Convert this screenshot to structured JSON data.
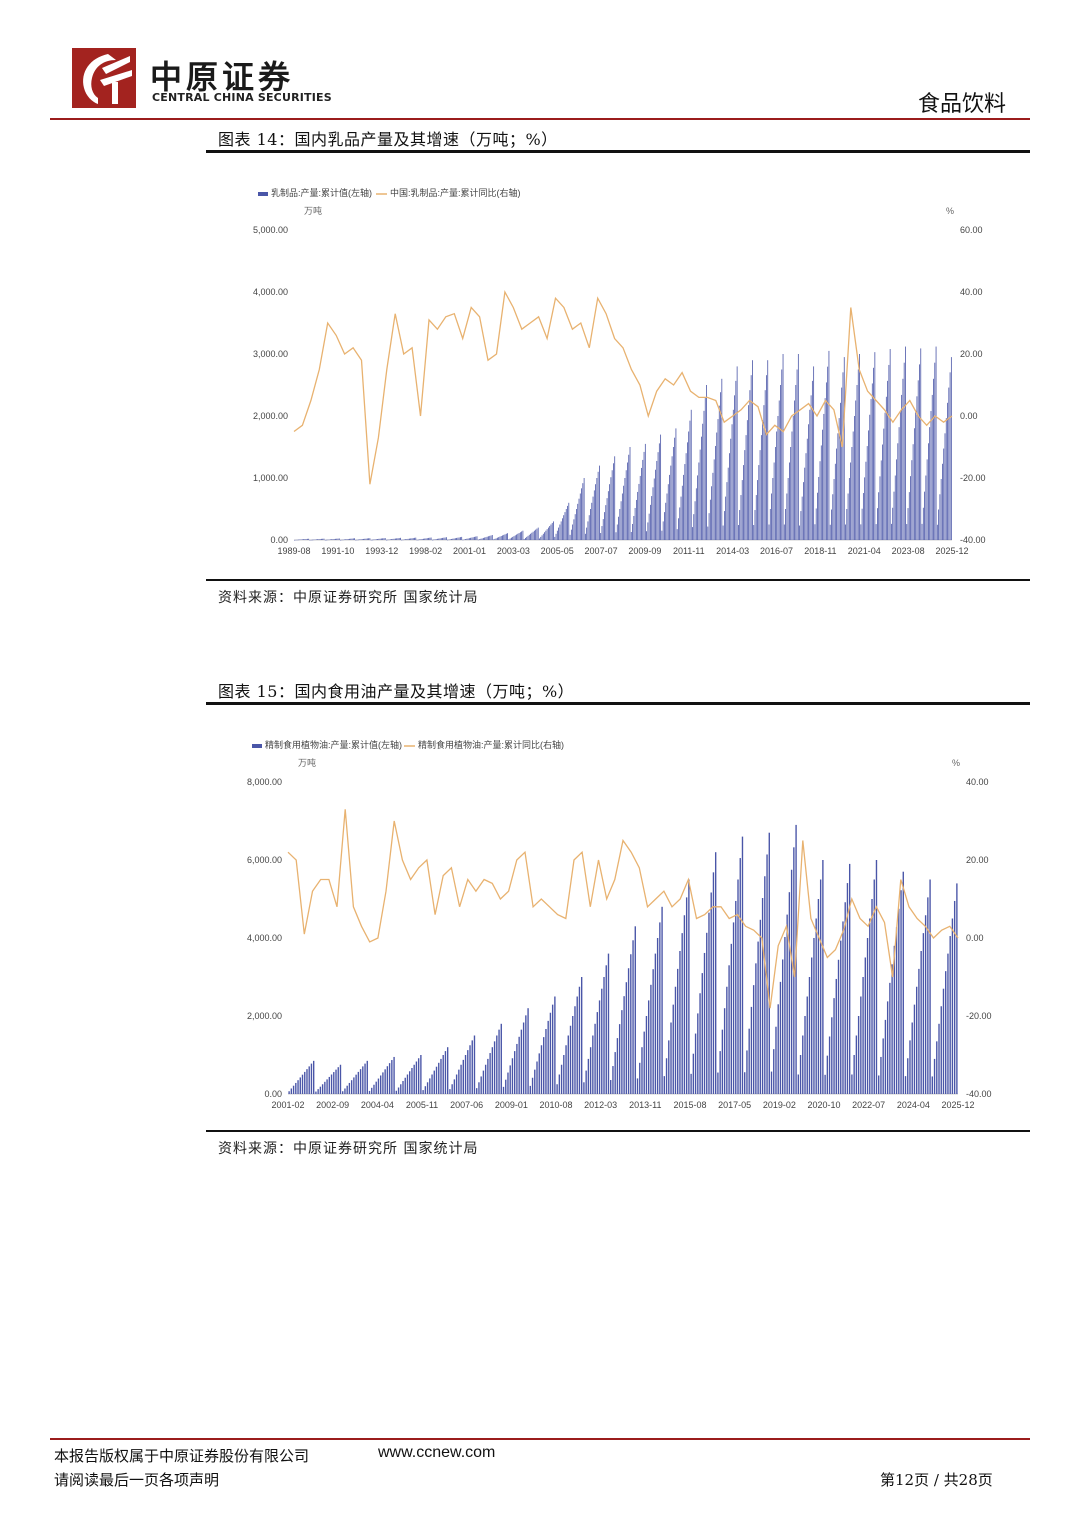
{
  "header": {
    "logo_cn": "中原证券",
    "logo_en": "CENTRAL CHINA SECURITIES",
    "section": "食品饮料"
  },
  "charts": [
    {
      "fig_title": "图表 14：国内乳品产量及其增速（万吨；%）",
      "source": "资料来源：中原证券研究所  国家统计局",
      "chart_data": {
        "type": "bar+line",
        "legend": [
          "乳制品:产量:累计值(左轴)",
          "中国:乳制品:产量:累计同比(右轴)"
        ],
        "left_unit": "万吨",
        "right_unit": "%",
        "left_ticks": [
          "0.00",
          "1,000.00",
          "2,000.00",
          "3,000.00",
          "4,000.00",
          "5,000.00"
        ],
        "right_ticks": [
          "-40.00",
          "-20.00",
          "0.00",
          "20.00",
          "40.00",
          "60.00"
        ],
        "ylim_left": [
          0,
          5000
        ],
        "ylim_right": [
          -40,
          60
        ],
        "x_labels": [
          "1989-08",
          "1991-10",
          "1993-12",
          "1998-02",
          "2001-01",
          "2003-03",
          "2005-05",
          "2007-07",
          "2009-09",
          "2011-11",
          "2014-03",
          "2016-07",
          "2018-11",
          "2021-04",
          "2023-08",
          "2025-12"
        ],
        "bar_annual_peaks": [
          20,
          22,
          25,
          28,
          30,
          32,
          35,
          38,
          40,
          45,
          50,
          60,
          80,
          110,
          150,
          200,
          300,
          600,
          1000,
          1200,
          1350,
          1500,
          1550,
          1700,
          1800,
          2100,
          2500,
          2600,
          2800,
          2900,
          2900,
          3000,
          3000,
          2800,
          3050,
          2950,
          3000,
          3030,
          3080,
          3120,
          3090,
          3120,
          2950
        ],
        "bar_start_year": 1989,
        "line_values": [
          -5,
          -3,
          5,
          15,
          30,
          26,
          20,
          22,
          18,
          -22,
          -7,
          15,
          33,
          20,
          22,
          0,
          31,
          28,
          32,
          33,
          25,
          35,
          32,
          18,
          20,
          40,
          35,
          28,
          30,
          32,
          25,
          38,
          35,
          28,
          30,
          22,
          38,
          33,
          25,
          22,
          15,
          10,
          0,
          8,
          12,
          10,
          14,
          8,
          6,
          6,
          5,
          -2,
          0,
          2,
          5,
          3,
          -6,
          -3,
          -5,
          0,
          2,
          4,
          0,
          5,
          2,
          -10,
          35,
          15,
          8,
          5,
          2,
          -2,
          2,
          5,
          0,
          -3,
          0,
          -2,
          0
        ]
      }
    },
    {
      "fig_title": "图表 15：国内食用油产量及其增速（万吨；%）",
      "source": "资料来源：中原证券研究所  国家统计局",
      "chart_data": {
        "type": "bar+line",
        "legend": [
          "精制食用植物油:产量:累计值(左轴)",
          "精制食用植物油:产量:累计同比(右轴)"
        ],
        "left_unit": "万吨",
        "right_unit": "%",
        "left_ticks": [
          "0.00",
          "2,000.00",
          "4,000.00",
          "6,000.00",
          "8,000.00"
        ],
        "right_ticks": [
          "-40.00",
          "-20.00",
          "0.00",
          "20.00",
          "40.00"
        ],
        "ylim_left": [
          0,
          8000
        ],
        "ylim_right": [
          -40,
          40
        ],
        "x_labels": [
          "2001-02",
          "2002-09",
          "2004-04",
          "2005-11",
          "2007-06",
          "2009-01",
          "2010-08",
          "2012-03",
          "2013-11",
          "2015-08",
          "2017-05",
          "2019-02",
          "2020-10",
          "2022-07",
          "2024-04",
          "2025-12"
        ],
        "bar_annual_peaks": [
          850,
          750,
          850,
          950,
          1000,
          1200,
          1500,
          1800,
          2200,
          2500,
          3000,
          3600,
          4300,
          4800,
          5500,
          6200,
          6600,
          6700,
          6900,
          6000,
          5900,
          6000,
          5700,
          5500,
          5400
        ],
        "bar_start_year": 2001,
        "line_values": [
          22,
          20,
          1,
          12,
          15,
          15,
          8,
          33,
          8,
          3,
          -1,
          0,
          12,
          30,
          20,
          15,
          18,
          20,
          6,
          16,
          18,
          8,
          15,
          12,
          15,
          14,
          10,
          12,
          20,
          22,
          8,
          10,
          8,
          6,
          5,
          20,
          22,
          8,
          20,
          10,
          15,
          25,
          22,
          18,
          8,
          10,
          12,
          8,
          10,
          15,
          5,
          6,
          8,
          8,
          5,
          6,
          3,
          2,
          0,
          -18,
          -2,
          3,
          -10,
          25,
          5,
          0,
          -5,
          -3,
          2,
          10,
          5,
          3,
          8,
          4,
          -10,
          15,
          8,
          5,
          3,
          0,
          2,
          3,
          0
        ]
      }
    }
  ],
  "footer": {
    "copyright": "本报告版权属于中原证券股份有限公司",
    "url": "www.ccnew.com",
    "disclaimer": "请阅读最后一页各项声明",
    "page": "第12页  /  共28页"
  },
  "colors": {
    "bar": "#4a56a8",
    "line": "#e8b270",
    "brand_red": "#9b1c1c"
  }
}
